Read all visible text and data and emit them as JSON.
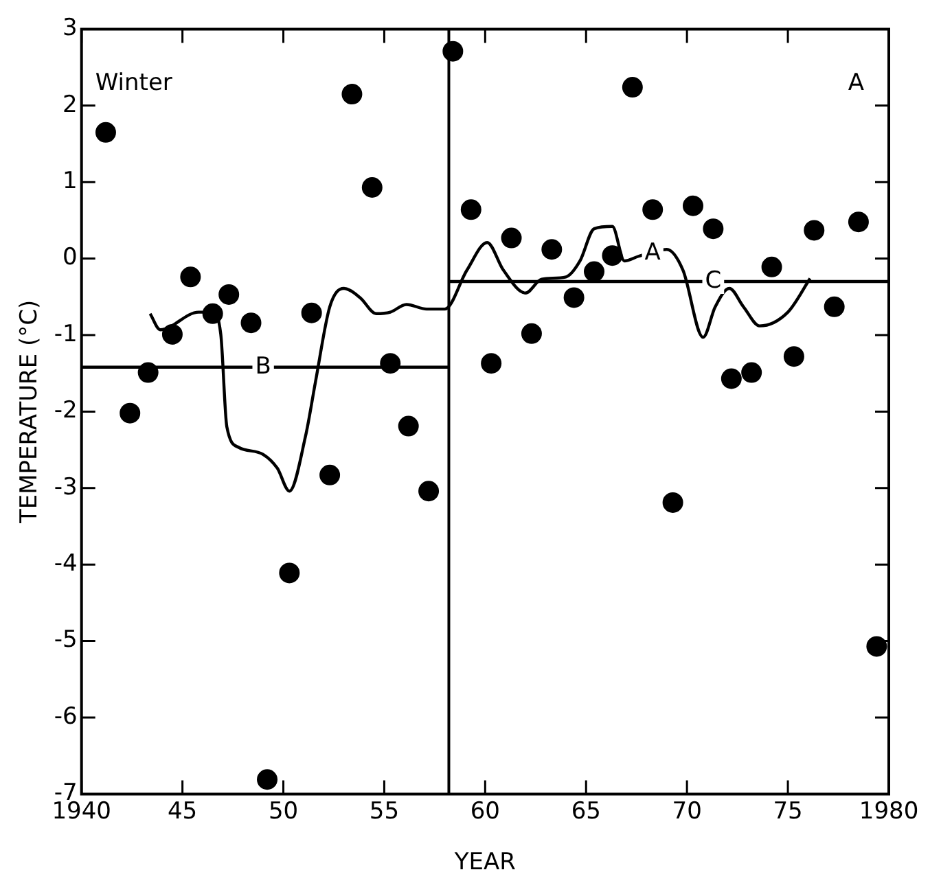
{
  "chart_data": {
    "type": "scatter",
    "xlabel": "YEAR",
    "ylabel": "TEMPERATURE (°C)",
    "xlim": [
      1940,
      1980
    ],
    "xticks": [
      1940,
      {
        "value": 1945,
        "label": "45"
      },
      {
        "value": 1950,
        "label": "50"
      },
      {
        "value": 1955,
        "label": "55"
      },
      {
        "value": 1960,
        "label": "60"
      },
      {
        "value": 1965,
        "label": "65"
      },
      {
        "value": 1970,
        "label": "70"
      },
      {
        "value": 1975,
        "label": "75"
      },
      1980
    ],
    "ylim": [
      -7,
      3
    ],
    "yticks": [
      -7,
      -6,
      -5,
      -4,
      -3,
      -2,
      -1,
      0,
      1,
      2,
      3
    ],
    "grid": false,
    "legend": false,
    "marker": "circle",
    "series": [
      {
        "type": "scatter",
        "color": "#000000",
        "x": [
          1941.2,
          1942.4,
          1943.3,
          1944.5,
          1945.4,
          1946.5,
          1947.3,
          1948.4,
          1949.2,
          1950.3,
          1951.4,
          1952.3,
          1953.4,
          1954.4,
          1955.3,
          1956.2,
          1957.2,
          1958.4,
          1959.3,
          1960.3,
          1961.3,
          1962.3,
          1963.3,
          1964.4,
          1965.4,
          1966.3,
          1967.3,
          1968.3,
          1969.3,
          1970.3,
          1971.3,
          1972.2,
          1973.2,
          1974.2,
          1975.3,
          1976.3,
          1977.3,
          1978.5,
          1979.4
        ],
        "values": [
          1.65,
          -2.02,
          -1.49,
          -0.99,
          -0.24,
          -0.72,
          -0.47,
          -0.84,
          -6.81,
          -4.11,
          -0.71,
          -2.83,
          2.15,
          0.93,
          -1.37,
          -2.19,
          -3.04,
          2.71,
          0.64,
          -1.37,
          0.27,
          -0.98,
          0.12,
          -0.51,
          -0.17,
          0.04,
          2.24,
          0.64,
          -3.19,
          0.69,
          0.39,
          -1.57,
          -1.49,
          -0.11,
          -1.28,
          0.37,
          -0.63,
          0.48,
          -5.07
        ]
      },
      {
        "type": "line",
        "color": "#000000",
        "marker": "none",
        "x": [
          1943.4,
          1943.9,
          1945.8,
          1946.5,
          1946.9,
          1947.2,
          1947.8,
          1949,
          1949.7,
          1950.3,
          1951.1,
          1951.6,
          1952.3,
          1953,
          1953.8,
          1954.6,
          1955.3,
          1956.1,
          1957.1,
          1958,
          1959.1,
          1960.1,
          1960.9,
          1962,
          1962.8,
          1964,
          1964.7,
          1965.4,
          1966.3,
          1966.9,
          1967.6,
          1969,
          1969.8,
          1970.8,
          1971.4,
          1972.1,
          1972.8,
          1973.6,
          1975,
          1976.1
        ],
        "values": [
          -0.72,
          -0.93,
          -0.7,
          -0.7,
          -0.99,
          -2.2,
          -2.47,
          -2.56,
          -2.74,
          -3.04,
          -2.32,
          -1.6,
          -0.63,
          -0.39,
          -0.51,
          -0.72,
          -0.7,
          -0.6,
          -0.66,
          -0.66,
          -0.15,
          0.21,
          -0.15,
          -0.45,
          -0.27,
          -0.24,
          -0.03,
          0.39,
          0.42,
          -0.03,
          0.03,
          0.12,
          -0.15,
          -1.03,
          -0.63,
          -0.39,
          -0.63,
          -0.88,
          -0.7,
          -0.26
        ]
      },
      {
        "type": "line",
        "color": "#000000",
        "marker": "none",
        "x": [
          1940,
          1958.2
        ],
        "values": [
          -1.42,
          -1.42
        ]
      },
      {
        "type": "line",
        "color": "#000000",
        "marker": "none",
        "x": [
          1958.2,
          1980
        ],
        "values": [
          -0.3,
          -0.3
        ]
      }
    ],
    "ref_lines": [
      {
        "axis": "x",
        "value": 1958.2,
        "color": "#000000"
      }
    ],
    "annotations": [
      "Winter",
      "A",
      {
        "text": "A",
        "x": 1968.3,
        "y": 0.07
      },
      {
        "text": "B",
        "x": 1949,
        "y": -1.42
      },
      {
        "text": "C",
        "x": 1971.3,
        "y": -0.3
      }
    ]
  }
}
